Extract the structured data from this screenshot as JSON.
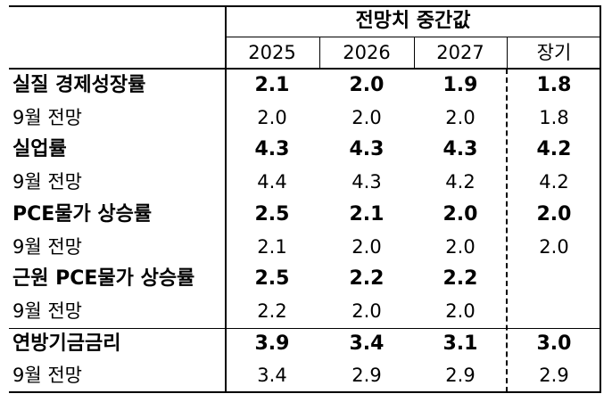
{
  "header": {
    "group_title": "전망치 중간값",
    "years": [
      "2025",
      "2026",
      "2027",
      "장기"
    ]
  },
  "rows": [
    {
      "label": "실질 경제성장률",
      "bold": true,
      "values": [
        "2.1",
        "2.0",
        "1.9",
        "1.8"
      ]
    },
    {
      "label": "9월 전망",
      "bold": false,
      "values": [
        "2.0",
        "2.0",
        "2.0",
        "1.8"
      ]
    },
    {
      "label": "실업률",
      "bold": true,
      "values": [
        "4.3",
        "4.3",
        "4.3",
        "4.2"
      ]
    },
    {
      "label": "9월 전망",
      "bold": false,
      "values": [
        "4.4",
        "4.3",
        "4.2",
        "4.2"
      ]
    },
    {
      "label": "PCE물가 상승률",
      "bold": true,
      "values": [
        "2.5",
        "2.1",
        "2.0",
        "2.0"
      ]
    },
    {
      "label": "9월 전망",
      "bold": false,
      "values": [
        "2.1",
        "2.0",
        "2.0",
        "2.0"
      ]
    },
    {
      "label": "근원 PCE물가 상승률",
      "bold": true,
      "values": [
        "2.5",
        "2.2",
        "2.2",
        ""
      ]
    },
    {
      "label": "9월 전망",
      "bold": false,
      "values": [
        "2.2",
        "2.0",
        "2.0",
        ""
      ]
    },
    {
      "label": "연방기금금리",
      "bold": true,
      "values": [
        "3.9",
        "3.4",
        "3.1",
        "3.0"
      ]
    },
    {
      "label": "9월 전망",
      "bold": false,
      "values": [
        "3.4",
        "2.9",
        "2.9",
        "2.9"
      ]
    }
  ]
}
